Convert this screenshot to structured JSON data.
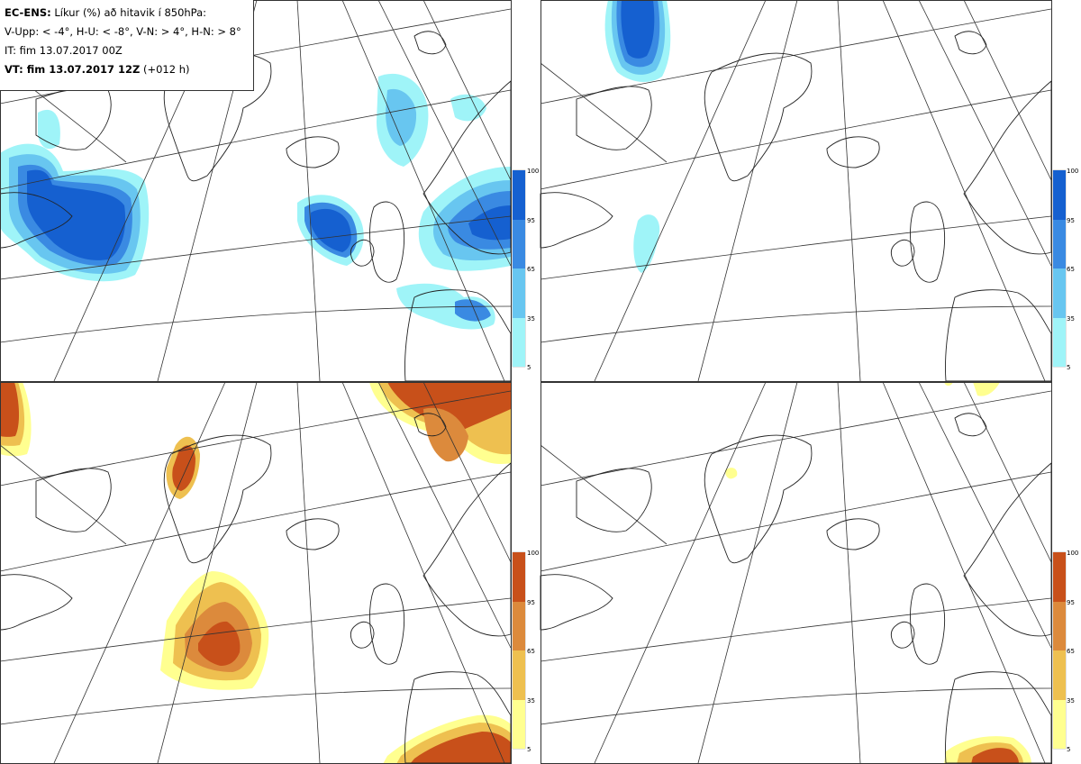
{
  "header": {
    "model": "EC-ENS:",
    "title": "Líkur (%) að hitavik í 850hPa:",
    "categories": "V-Upp: < -4°, H-U: < -8°, V-N: > 4°, H-N: > 8°",
    "init_time": "IT: fim 13.07.2017 00Z",
    "valid_label": "VT: fim 13.07.2017 12Z",
    "valid_lead": "(+012 h)"
  },
  "colorbars": {
    "cold": {
      "ticks": [
        "100",
        "95",
        "65",
        "35",
        "5"
      ],
      "colors": [
        "#1560d0",
        "#3a8ae2",
        "#68c6f0",
        "#9ff4f8"
      ]
    },
    "warm": {
      "ticks": [
        "100",
        "95",
        "65",
        "35",
        "5"
      ],
      "colors": [
        "#c8501a",
        "#dc8a3c",
        "#eec050",
        "#ffff90"
      ]
    }
  },
  "panels": [
    {
      "id": "cold-moderate"
    },
    {
      "id": "cold-strong"
    },
    {
      "id": "warm-moderate"
    },
    {
      "id": "warm-strong"
    }
  ]
}
